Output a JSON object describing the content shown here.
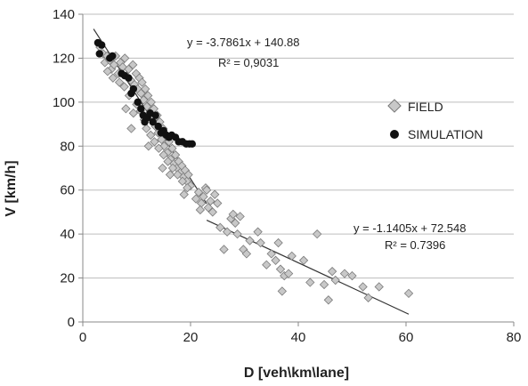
{
  "chart_data": {
    "type": "scatter",
    "xlabel": "D [veh\\km\\lane]",
    "ylabel": "V [km/h]",
    "xlim": [
      0,
      80
    ],
    "ylim": [
      0,
      140
    ],
    "xticks": [
      0,
      20,
      40,
      60,
      80
    ],
    "yticks": [
      0,
      20,
      40,
      60,
      80,
      100,
      120,
      140
    ],
    "grid": "horizontal",
    "legend_position": "right",
    "series": [
      {
        "name": "FIELD",
        "marker": "diamond",
        "color": "#c8c8c8",
        "points": [
          [
            3.2,
            125
          ],
          [
            3.8,
            122
          ],
          [
            4.1,
            118
          ],
          [
            4.5,
            121
          ],
          [
            5.0,
            119
          ],
          [
            5.3,
            115
          ],
          [
            5.8,
            117
          ],
          [
            6.1,
            121
          ],
          [
            6.6,
            113
          ],
          [
            7.0,
            118
          ],
          [
            7.4,
            116
          ],
          [
            7.8,
            120
          ],
          [
            8.1,
            112
          ],
          [
            8.5,
            115
          ],
          [
            8.9,
            110
          ],
          [
            9.3,
            117
          ],
          [
            9.6,
            108
          ],
          [
            9.9,
            113
          ],
          [
            10.2,
            106
          ],
          [
            10.5,
            111
          ],
          [
            10.8,
            104
          ],
          [
            11.0,
            109
          ],
          [
            11.3,
            101
          ],
          [
            11.6,
            106
          ],
          [
            11.9,
            98
          ],
          [
            12.1,
            103
          ],
          [
            12.4,
            95
          ],
          [
            12.7,
            100
          ],
          [
            13.0,
            92
          ],
          [
            13.2,
            97
          ],
          [
            13.5,
            89
          ],
          [
            13.8,
            94
          ],
          [
            14.0,
            86
          ],
          [
            14.3,
            91
          ],
          [
            14.6,
            83
          ],
          [
            14.9,
            88
          ],
          [
            15.1,
            80
          ],
          [
            15.4,
            85
          ],
          [
            15.7,
            77
          ],
          [
            16.0,
            82
          ],
          [
            16.3,
            74
          ],
          [
            16.6,
            79
          ],
          [
            16.9,
            72
          ],
          [
            17.2,
            76
          ],
          [
            17.5,
            70
          ],
          [
            17.8,
            73
          ],
          [
            18.1,
            68
          ],
          [
            18.4,
            71
          ],
          [
            18.7,
            66
          ],
          [
            19.0,
            69
          ],
          [
            19.3,
            64
          ],
          [
            19.6,
            67
          ],
          [
            20.0,
            62
          ],
          [
            4.6,
            114
          ],
          [
            5.6,
            111
          ],
          [
            6.8,
            109
          ],
          [
            7.7,
            107
          ],
          [
            8.6,
            103
          ],
          [
            9.0,
            88
          ],
          [
            10.0,
            99
          ],
          [
            10.7,
            96
          ],
          [
            11.4,
            92
          ],
          [
            11.8,
            88
          ],
          [
            12.6,
            85
          ],
          [
            13.3,
            82
          ],
          [
            14.1,
            79
          ],
          [
            15.0,
            76
          ],
          [
            15.8,
            73
          ],
          [
            16.7,
            70
          ],
          [
            17.6,
            67
          ],
          [
            18.5,
            64
          ],
          [
            19.4,
            61
          ],
          [
            8.0,
            97
          ],
          [
            9.4,
            95
          ],
          [
            12.2,
            80
          ],
          [
            14.8,
            70
          ],
          [
            16.2,
            67
          ],
          [
            18.8,
            58
          ],
          [
            21.0,
            56
          ],
          [
            21.5,
            59
          ],
          [
            22.0,
            54
          ],
          [
            22.4,
            57
          ],
          [
            22.8,
            61
          ],
          [
            23.3,
            52
          ],
          [
            23.7,
            55
          ],
          [
            24.1,
            50
          ],
          [
            24.5,
            58
          ],
          [
            25.0,
            54
          ],
          [
            21.8,
            51
          ],
          [
            23.0,
            60
          ],
          [
            25.5,
            43
          ],
          [
            26.8,
            41
          ],
          [
            27.5,
            47
          ],
          [
            27.9,
            49
          ],
          [
            28.3,
            45
          ],
          [
            28.7,
            40
          ],
          [
            29.2,
            48
          ],
          [
            29.8,
            33
          ],
          [
            31.0,
            37
          ],
          [
            32.5,
            41
          ],
          [
            33.0,
            36
          ],
          [
            35.0,
            31
          ],
          [
            35.8,
            28
          ],
          [
            36.3,
            36
          ],
          [
            36.7,
            24
          ],
          [
            37.4,
            21
          ],
          [
            38.2,
            22
          ],
          [
            38.8,
            30
          ],
          [
            41.0,
            28
          ],
          [
            43.5,
            40
          ],
          [
            44.8,
            17
          ],
          [
            45.6,
            10
          ],
          [
            46.3,
            23
          ],
          [
            46.9,
            19
          ],
          [
            50.0,
            21
          ],
          [
            52.0,
            16
          ],
          [
            53.0,
            11
          ],
          [
            55.0,
            16
          ],
          [
            60.5,
            13
          ],
          [
            26.2,
            33
          ],
          [
            30.4,
            31
          ],
          [
            34.1,
            26
          ],
          [
            37.0,
            14
          ],
          [
            42.2,
            18
          ],
          [
            48.6,
            22
          ]
        ]
      },
      {
        "name": "SIMULATION",
        "marker": "circle",
        "color": "#111111",
        "points": [
          [
            2.8,
            127
          ],
          [
            3.1,
            122
          ],
          [
            3.5,
            126
          ],
          [
            5.0,
            120
          ],
          [
            5.5,
            121
          ],
          [
            7.2,
            113
          ],
          [
            7.8,
            112
          ],
          [
            8.5,
            111
          ],
          [
            9.0,
            104
          ],
          [
            9.4,
            106
          ],
          [
            10.2,
            100
          ],
          [
            10.8,
            97
          ],
          [
            11.2,
            94
          ],
          [
            11.5,
            91
          ],
          [
            12.0,
            93
          ],
          [
            12.5,
            95
          ],
          [
            13.0,
            91
          ],
          [
            13.5,
            94
          ],
          [
            14.0,
            89
          ],
          [
            14.5,
            86
          ],
          [
            15.0,
            87
          ],
          [
            15.5,
            85
          ],
          [
            16.0,
            84
          ],
          [
            16.5,
            85
          ],
          [
            17.2,
            84
          ],
          [
            17.8,
            82
          ],
          [
            18.5,
            82
          ],
          [
            19.2,
            81
          ],
          [
            19.8,
            81
          ],
          [
            20.3,
            81
          ]
        ]
      }
    ],
    "trendlines": [
      {
        "slope": -3.7861,
        "intercept": 140.88,
        "x_range": [
          2,
          23
        ],
        "equation": "y = -3.7861x + 140.88",
        "r2": "R² = 0,9031"
      },
      {
        "slope": -1.1405,
        "intercept": 72.548,
        "x_range": [
          23,
          60.5
        ],
        "equation": "y = -1.1405x + 72.548",
        "r2": "R² = 0.7396"
      }
    ]
  }
}
